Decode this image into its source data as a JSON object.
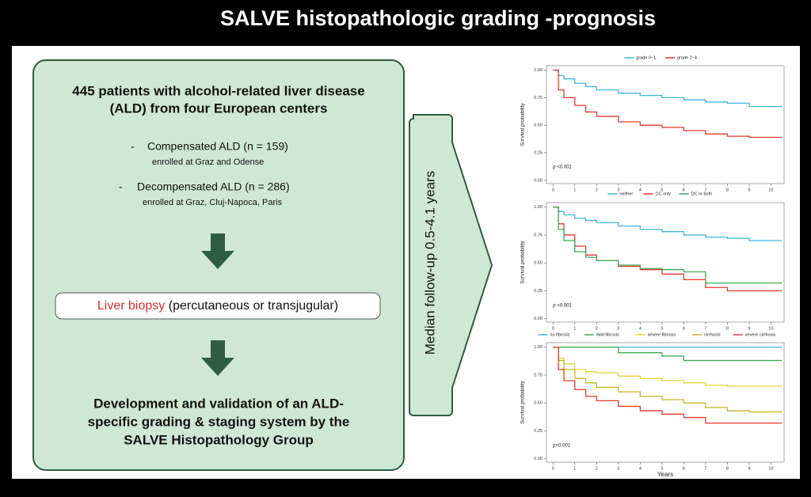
{
  "title": "SALVE histopathologic grading -prognosis",
  "box": {
    "heading": [
      "445 patients with alcohol-related liver disease",
      "(ALD) from four European centers"
    ],
    "items": [
      {
        "label": "Compensated ALD (n = 159)",
        "sub": "enrolled at Graz and Odense"
      },
      {
        "label": "Decompensated ALD (n = 286)",
        "sub": "enrolled at Graz, Cluj-Napoca, Paris"
      }
    ],
    "biopsy_highlight": "Liver biopsy",
    "biopsy_rest": "(percutaneous or transjugular)",
    "conclusion": [
      "Development and validation of an ALD-",
      "specific grading & staging system by the",
      "SALVE Histopathology Group"
    ]
  },
  "arrow_label": "Median follow-up 0.5-4.1 years",
  "chart_data": [
    {
      "type": "line",
      "step": true,
      "y_label": "Survival probability",
      "annotation": "p <0.001",
      "x": [
        0,
        0.25,
        0.5,
        1,
        1.5,
        2,
        3,
        4,
        5,
        6,
        7,
        8,
        9,
        10,
        10.5
      ],
      "series": [
        {
          "name": "grade 0−1",
          "color": "#3fb6e0",
          "values": [
            1,
            0.95,
            0.92,
            0.88,
            0.85,
            0.82,
            0.79,
            0.77,
            0.75,
            0.73,
            0.71,
            0.7,
            0.67,
            0.67,
            0.67
          ]
        },
        {
          "name": "grade 2−4",
          "color": "#e8392a",
          "values": [
            1,
            0.82,
            0.75,
            0.68,
            0.62,
            0.58,
            0.53,
            0.5,
            0.48,
            0.45,
            0.42,
            0.4,
            0.39,
            0.39,
            0.39
          ]
        }
      ],
      "xlim": [
        -0.3,
        10.6
      ],
      "ylim": [
        -0.03,
        1.04
      ],
      "xticks": [
        0,
        1,
        2,
        3,
        4,
        5,
        6,
        7,
        8,
        9,
        10
      ],
      "yticks": [
        {
          "value": 0,
          "label": "0.00"
        },
        {
          "value": 0.25,
          "label": "0.25"
        },
        {
          "value": 0.5,
          "label": "0.50"
        },
        {
          "value": 0.75,
          "label": "0.75"
        },
        {
          "value": 1,
          "label": "1.00"
        }
      ]
    },
    {
      "type": "line",
      "step": true,
      "y_label": "Survival probability",
      "annotation": "p <0.001",
      "x": [
        0,
        0.25,
        0.5,
        1,
        1.5,
        2,
        3,
        4,
        5,
        6,
        7,
        8,
        9,
        10,
        10.5
      ],
      "series": [
        {
          "name": "neither",
          "color": "#3fb6e0",
          "values": [
            1,
            0.96,
            0.93,
            0.9,
            0.88,
            0.86,
            0.83,
            0.8,
            0.78,
            0.75,
            0.73,
            0.72,
            0.7,
            0.7,
            0.7
          ]
        },
        {
          "name": "CC only",
          "color": "#e8392a",
          "values": [
            1,
            0.85,
            0.75,
            0.65,
            0.57,
            0.52,
            0.47,
            0.44,
            0.4,
            0.35,
            0.28,
            0.25,
            0.25,
            0.25,
            0.25
          ]
        },
        {
          "name": "DC or both",
          "color": "#3bab57",
          "values": [
            1,
            0.8,
            0.7,
            0.6,
            0.55,
            0.52,
            0.48,
            0.45,
            0.44,
            0.42,
            0.32,
            0.32,
            0.32,
            0.32,
            0.32
          ]
        }
      ],
      "xlim": [
        -0.3,
        10.6
      ],
      "ylim": [
        -0.03,
        1.04
      ],
      "xticks": [
        0,
        1,
        2,
        3,
        4,
        5,
        6,
        7,
        8,
        9,
        10
      ],
      "yticks": [
        {
          "value": 0,
          "label": "0.00"
        },
        {
          "value": 0.25,
          "label": "0.25"
        },
        {
          "value": 0.5,
          "label": "0.50"
        },
        {
          "value": 0.75,
          "label": "0.75"
        },
        {
          "value": 1,
          "label": "1.00"
        }
      ]
    },
    {
      "type": "line",
      "step": true,
      "y_label": "Survival probability",
      "x_label": "Years",
      "annotation": "p<0.001",
      "x": [
        0,
        0.25,
        0.5,
        1,
        1.5,
        2,
        3,
        4,
        5,
        6,
        7,
        8,
        9,
        10,
        10.5
      ],
      "series": [
        {
          "name": "no fibrosis",
          "color": "#3fb6e0",
          "values": [
            1,
            1,
            1,
            1,
            1,
            1,
            1,
            1,
            1,
            1,
            1,
            1,
            1,
            1,
            1
          ]
        },
        {
          "name": "mild fibrosis",
          "color": "#3bab57",
          "values": [
            1,
            1,
            1,
            1,
            1,
            1,
            0.95,
            0.95,
            0.92,
            0.88,
            0.88,
            0.88,
            0.88,
            0.88,
            0.88
          ]
        },
        {
          "name": "severe fibrosis",
          "color": "#e8d43a",
          "values": [
            1,
            0.9,
            0.85,
            0.8,
            0.78,
            0.77,
            0.74,
            0.72,
            0.7,
            0.68,
            0.66,
            0.65,
            0.65,
            0.65,
            0.65
          ]
        },
        {
          "name": "cirrhosis",
          "color": "#c9b422",
          "values": [
            1,
            0.88,
            0.8,
            0.72,
            0.68,
            0.64,
            0.6,
            0.56,
            0.53,
            0.5,
            0.46,
            0.43,
            0.42,
            0.42,
            0.42
          ]
        },
        {
          "name": "severe cirrhosis",
          "color": "#e8392a",
          "values": [
            1,
            0.8,
            0.7,
            0.62,
            0.56,
            0.52,
            0.47,
            0.43,
            0.4,
            0.37,
            0.32,
            0.32,
            0.32,
            0.32,
            0.32
          ]
        }
      ],
      "xlim": [
        -0.3,
        10.6
      ],
      "ylim": [
        -0.03,
        1.04
      ],
      "xticks": [
        0,
        1,
        2,
        3,
        4,
        5,
        6,
        7,
        8,
        9,
        10
      ],
      "yticks": [
        {
          "value": 0,
          "label": "0.00"
        },
        {
          "value": 0.25,
          "label": "0.25"
        },
        {
          "value": 0.5,
          "label": "0.50"
        },
        {
          "value": 0.75,
          "label": "0.75"
        },
        {
          "value": 1,
          "label": "1.00"
        }
      ]
    }
  ]
}
